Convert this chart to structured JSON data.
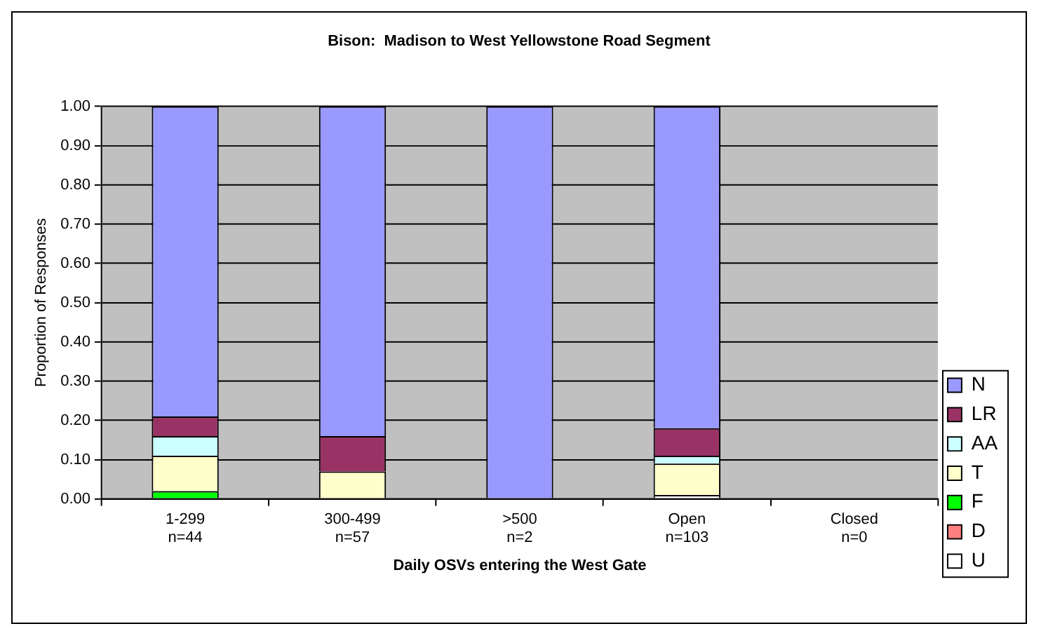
{
  "chart_data": {
    "type": "bar",
    "title": "Bison:  Madison to West Yellowstone Road Segment",
    "xlabel": "Daily OSVs entering the West Gate",
    "ylabel": "Proportion of Responses",
    "categories": [
      "1-299\nn=44",
      "300-499\nn=57",
      ">500\nn=2",
      "Open\nn=103",
      "Closed\nn=0"
    ],
    "stacked": true,
    "grid": "y",
    "legend": "right",
    "ylim": [
      0,
      1
    ],
    "yticks": [
      {
        "value": 0,
        "label": "0.00"
      },
      {
        "value": 0.1,
        "label": "0.10"
      },
      {
        "value": 0.2,
        "label": "0.20"
      },
      {
        "value": 0.3,
        "label": "0.30"
      },
      {
        "value": 0.4,
        "label": "0.40"
      },
      {
        "value": 0.5,
        "label": "0.50"
      },
      {
        "value": 0.6,
        "label": "0.60"
      },
      {
        "value": 0.7,
        "label": "0.70"
      },
      {
        "value": 0.8,
        "label": "0.80"
      },
      {
        "value": 0.9,
        "label": "0.90"
      },
      {
        "value": 1,
        "label": "1.00"
      }
    ],
    "series": [
      {
        "name": "U",
        "color": "#ffffff",
        "values": [
          0,
          0,
          0,
          0.01,
          null
        ]
      },
      {
        "name": "D",
        "color": "#ff8080",
        "values": [
          0,
          0,
          0,
          0,
          null
        ]
      },
      {
        "name": "F",
        "color": "#00ff00",
        "values": [
          0.02,
          0,
          0,
          0,
          null
        ]
      },
      {
        "name": "T",
        "color": "#ffffcc",
        "values": [
          0.09,
          0.07,
          0,
          0.08,
          null
        ]
      },
      {
        "name": "AA",
        "color": "#ccffff",
        "values": [
          0.05,
          0,
          0,
          0.02,
          null
        ]
      },
      {
        "name": "LR",
        "color": "#993366",
        "values": [
          0.05,
          0.09,
          0,
          0.07,
          null
        ]
      },
      {
        "name": "N",
        "color": "#9999ff",
        "values": [
          0.79,
          0.84,
          1,
          0.82,
          null
        ]
      }
    ]
  }
}
